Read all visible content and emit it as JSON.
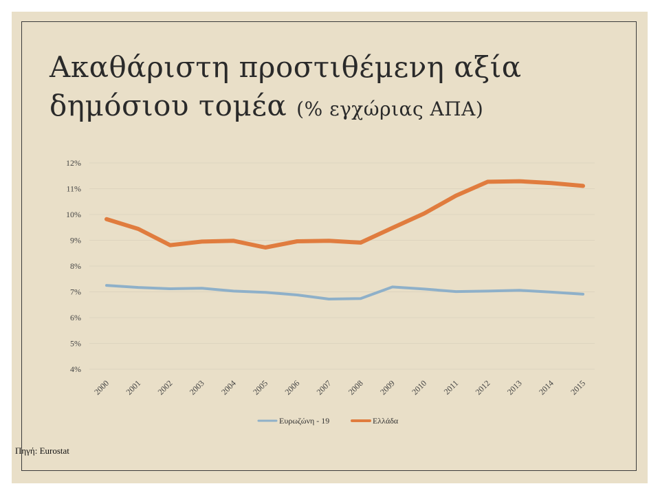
{
  "slide": {
    "title_main_line1": "Ακαθάριστη προστιθέμενη αξία",
    "title_main_line2": "δημόσιου τομέα",
    "title_sub": "(% εγχώριας ΑΠΑ)",
    "source": "Πηγή: Eurostat"
  },
  "chart_data": {
    "type": "line",
    "title": "Ακαθάριστη προστιθέμενη αξία δημόσιου τομέα (% εγχώριας ΑΠΑ)",
    "xlabel": "",
    "ylabel": "",
    "x": [
      "2000",
      "2001",
      "2002",
      "2003",
      "2004",
      "2005",
      "2006",
      "2007",
      "2008",
      "2009",
      "2010",
      "2011",
      "2012",
      "2013",
      "2014",
      "2015"
    ],
    "ylim": [
      4,
      12
    ],
    "yticks": [
      "4%",
      "5%",
      "6%",
      "7%",
      "8%",
      "9%",
      "10%",
      "11%",
      "12%"
    ],
    "grid": true,
    "legend_position": "bottom",
    "series": [
      {
        "name": "Ευρωζώνη - 19",
        "color": "#8eb0c9",
        "values": [
          7.25,
          7.17,
          7.12,
          7.14,
          7.03,
          6.98,
          6.88,
          6.72,
          6.74,
          7.19,
          7.11,
          7.01,
          7.03,
          7.06,
          6.99,
          6.91
        ]
      },
      {
        "name": "Ελλάδα",
        "color": "#e07c3e",
        "values": [
          9.82,
          9.44,
          8.81,
          8.95,
          8.98,
          8.72,
          8.96,
          8.98,
          8.91,
          9.48,
          10.04,
          10.73,
          11.27,
          11.29,
          11.22,
          11.11
        ]
      }
    ]
  }
}
